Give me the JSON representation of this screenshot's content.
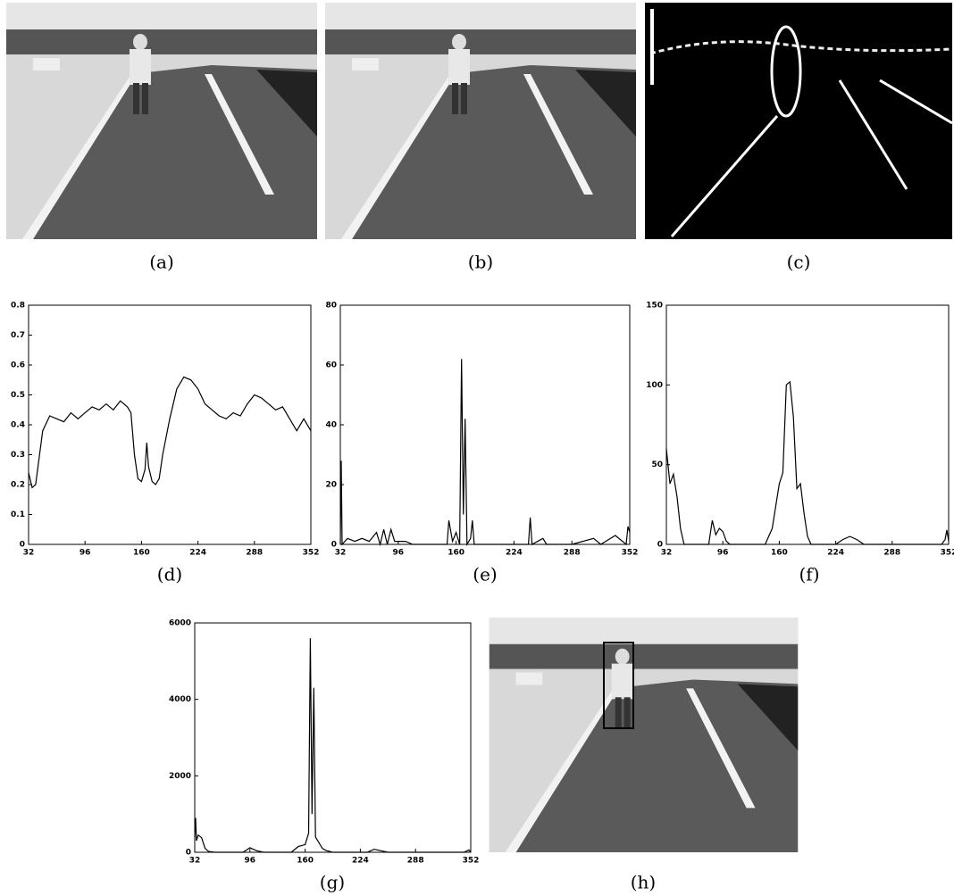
{
  "images": [
    {
      "caption": "(a)"
    },
    {
      "caption": "(b)"
    },
    {
      "caption": "(c)"
    },
    {
      "caption": "(h)"
    }
  ],
  "chart_data": [
    {
      "type": "line",
      "caption": "(d)",
      "color": "#000000",
      "x": [
        32,
        36,
        40,
        48,
        56,
        64,
        72,
        80,
        88,
        96,
        104,
        112,
        120,
        128,
        136,
        144,
        148,
        152,
        156,
        160,
        164,
        166,
        168,
        172,
        176,
        180,
        184,
        192,
        200,
        208,
        216,
        224,
        232,
        240,
        248,
        256,
        264,
        272,
        280,
        288,
        296,
        304,
        312,
        320,
        328,
        336,
        344,
        352
      ],
      "values": [
        0.24,
        0.19,
        0.2,
        0.38,
        0.43,
        0.42,
        0.41,
        0.44,
        0.42,
        0.44,
        0.46,
        0.45,
        0.47,
        0.45,
        0.48,
        0.46,
        0.44,
        0.3,
        0.22,
        0.21,
        0.25,
        0.34,
        0.26,
        0.21,
        0.2,
        0.22,
        0.3,
        0.42,
        0.52,
        0.56,
        0.55,
        0.52,
        0.47,
        0.45,
        0.43,
        0.42,
        0.44,
        0.43,
        0.47,
        0.5,
        0.49,
        0.47,
        0.45,
        0.46,
        0.42,
        0.38,
        0.42,
        0.38
      ],
      "xlim": [
        32,
        352
      ],
      "ylim": [
        0,
        0.8
      ],
      "xticks": [
        32,
        96,
        160,
        224,
        288,
        352
      ],
      "yticks": [
        0,
        0.1,
        0.2,
        0.3,
        0.4,
        0.5,
        0.6,
        0.7,
        0.8
      ]
    },
    {
      "type": "line",
      "caption": "(e)",
      "color": "#000000",
      "x": [
        32,
        33,
        34,
        40,
        48,
        56,
        64,
        72,
        76,
        80,
        84,
        88,
        92,
        104,
        112,
        150,
        152,
        156,
        160,
        164,
        166,
        168,
        170,
        172,
        176,
        178,
        180,
        200,
        240,
        242,
        244,
        256,
        260,
        288,
        312,
        320,
        336,
        348,
        350,
        352
      ],
      "values": [
        0,
        28,
        0,
        2,
        1,
        2,
        1,
        4,
        0,
        5,
        0,
        5,
        1,
        1,
        0,
        0,
        8,
        1,
        4,
        0,
        62,
        10,
        42,
        0,
        2,
        8,
        0,
        0,
        0,
        9,
        0,
        2,
        0,
        0,
        2,
        0,
        3,
        0,
        6,
        4
      ],
      "xlim": [
        32,
        352
      ],
      "ylim": [
        0,
        80
      ],
      "xticks": [
        32,
        96,
        160,
        224,
        288,
        352
      ],
      "yticks": [
        0,
        20,
        40,
        60,
        80
      ]
    },
    {
      "type": "line",
      "caption": "(f)",
      "color": "#000000",
      "x": [
        32,
        36,
        40,
        44,
        48,
        52,
        80,
        84,
        88,
        92,
        96,
        100,
        104,
        144,
        152,
        160,
        164,
        168,
        172,
        176,
        180,
        184,
        188,
        192,
        196,
        224,
        232,
        240,
        248,
        256,
        344,
        348,
        350,
        352
      ],
      "values": [
        60,
        38,
        44,
        30,
        10,
        0,
        0,
        15,
        6,
        10,
        8,
        2,
        0,
        0,
        10,
        38,
        45,
        100,
        102,
        80,
        35,
        38,
        20,
        5,
        0,
        0,
        3,
        5,
        3,
        0,
        0,
        3,
        9,
        2
      ],
      "xlim": [
        32,
        352
      ],
      "ylim": [
        0,
        150
      ],
      "xticks": [
        32,
        96,
        160,
        224,
        288,
        352
      ],
      "yticks": [
        0,
        50,
        100,
        150
      ]
    },
    {
      "type": "line",
      "caption": "(g)",
      "color": "#000000",
      "x": [
        32,
        33,
        34,
        36,
        40,
        44,
        48,
        56,
        88,
        96,
        104,
        112,
        144,
        152,
        160,
        164,
        166,
        168,
        170,
        172,
        176,
        180,
        184,
        192,
        232,
        240,
        248,
        256,
        344,
        350,
        352
      ],
      "values": [
        400,
        900,
        300,
        450,
        380,
        100,
        20,
        0,
        0,
        120,
        40,
        0,
        0,
        150,
        200,
        500,
        5600,
        1000,
        4300,
        400,
        250,
        100,
        50,
        0,
        0,
        80,
        40,
        0,
        0,
        60,
        0
      ],
      "xlim": [
        32,
        352
      ],
      "ylim": [
        0,
        6000
      ],
      "xticks": [
        32,
        96,
        160,
        224,
        288,
        352
      ],
      "yticks": [
        0,
        2000,
        4000,
        6000
      ]
    }
  ]
}
